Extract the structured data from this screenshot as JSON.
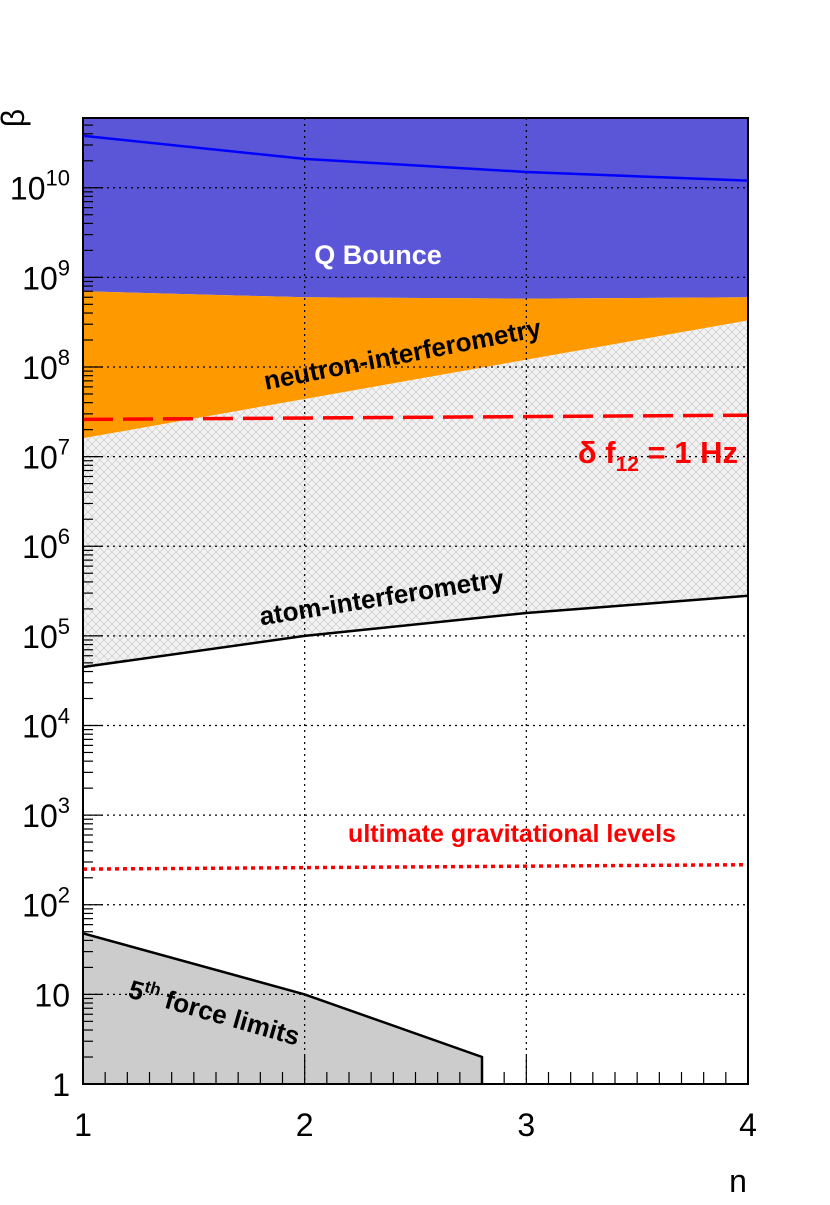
{
  "chart_data": {
    "type": "area",
    "xlabel": "n",
    "ylabel": "β",
    "yscale": "log",
    "xlim": [
      1,
      4
    ],
    "ylim": [
      1,
      60000000000
    ],
    "grid": true,
    "x_ticks": [
      {
        "value": 1,
        "label": "1"
      },
      {
        "value": 2,
        "label": "2"
      },
      {
        "value": 3,
        "label": "3"
      },
      {
        "value": 4,
        "label": "4"
      }
    ],
    "y_ticks": [
      {
        "value": 1,
        "label": "1"
      },
      {
        "value": 10,
        "label": "10"
      },
      {
        "value": 100,
        "base": "10",
        "exp": "2"
      },
      {
        "value": 1000,
        "base": "10",
        "exp": "3"
      },
      {
        "value": 10000,
        "base": "10",
        "exp": "4"
      },
      {
        "value": 100000,
        "base": "10",
        "exp": "5"
      },
      {
        "value": 1000000,
        "base": "10",
        "exp": "6"
      },
      {
        "value": 10000000,
        "base": "10",
        "exp": "7"
      },
      {
        "value": 100000000,
        "base": "10",
        "exp": "8"
      },
      {
        "value": 1000000000,
        "base": "10",
        "exp": "9"
      },
      {
        "value": 10000000000,
        "base": "10",
        "exp": "10"
      }
    ],
    "regions": [
      {
        "name": "Q Bounce",
        "color": "#5b55d8",
        "line_color": "#0000ff",
        "lower": {
          "x": [
            1,
            2,
            3,
            4
          ],
          "y": [
            700000000,
            600000000,
            580000000,
            600000000
          ]
        },
        "upper_line": {
          "x": [
            1,
            2,
            3,
            4
          ],
          "y": [
            38000000000,
            21000000000,
            15000000000,
            12000000000
          ]
        }
      },
      {
        "name": "neutron-interferometry",
        "color": "#ff9900",
        "upper": {
          "x": [
            1,
            2,
            3,
            4
          ],
          "y": [
            700000000,
            600000000,
            580000000,
            600000000
          ]
        },
        "lower": {
          "x": [
            1,
            4
          ],
          "y": [
            16000000,
            330000000
          ]
        }
      },
      {
        "name": "atom-interferometry",
        "color": "#cccccc",
        "hatched": true,
        "upper": {
          "x": [
            1,
            4
          ],
          "y": [
            16000000,
            330000000
          ]
        },
        "lower": {
          "x": [
            1,
            2,
            3,
            4
          ],
          "y": [
            45000,
            100000,
            180000,
            280000
          ]
        }
      },
      {
        "name": "5th force limits",
        "color": "#cccccc",
        "boundary": {
          "x": [
            1,
            2,
            2.8,
            2.8
          ],
          "y": [
            48,
            10,
            2,
            1
          ]
        }
      }
    ],
    "lines": [
      {
        "name": "δ f12 = 1 Hz",
        "style": "dashed",
        "color": "#ff0000",
        "x": [
          1,
          4
        ],
        "y": [
          26000000,
          29000000
        ]
      },
      {
        "name": "ultimate gravitational levels",
        "style": "dotted",
        "color": "#ff0000",
        "x": [
          1,
          4
        ],
        "y": [
          250,
          280
        ]
      }
    ],
    "annotations": {
      "qbounce": "Q Bounce",
      "neutron": "neutron-interferometry",
      "delta_main": "δ f",
      "delta_sub": "12",
      "delta_rest": " = 1 Hz",
      "atom": "atom-interferometry",
      "ultimate": "ultimate gravitational levels",
      "fifth_5": "5",
      "fifth_th": "th",
      "fifth_rest": " force limits"
    }
  }
}
